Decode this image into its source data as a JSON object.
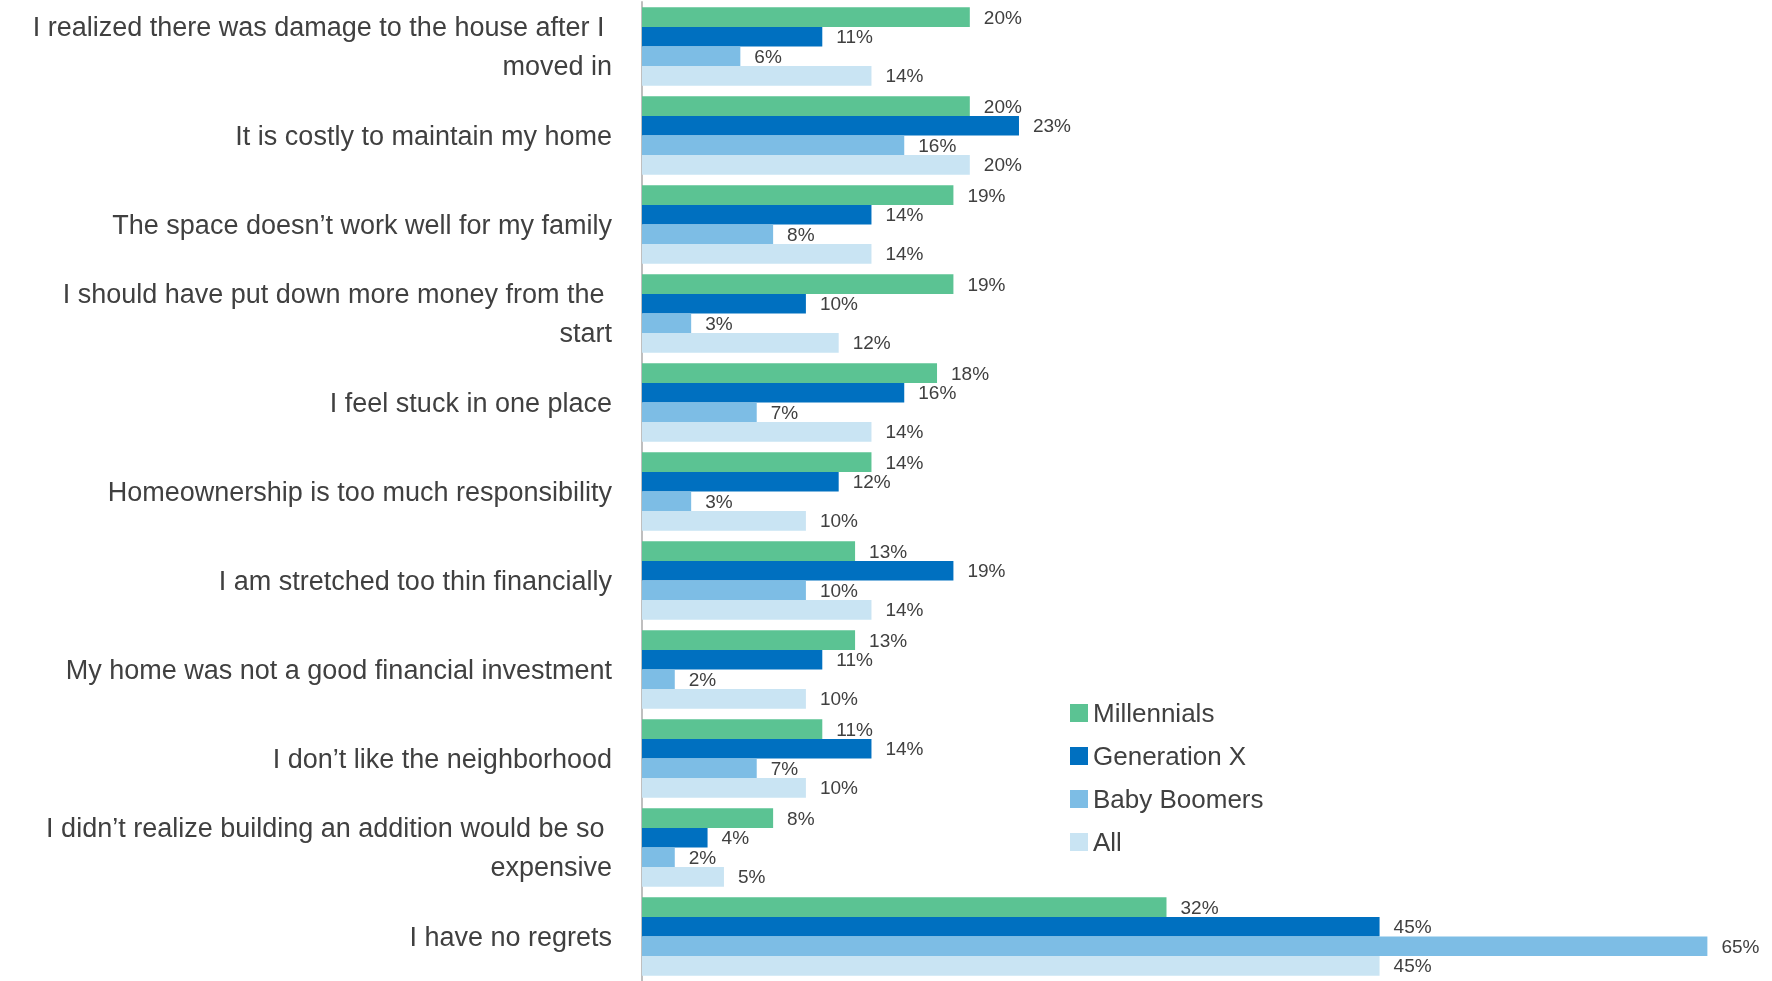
{
  "chart_data": {
    "type": "bar",
    "orientation": "horizontal",
    "categories": [
      "I realized there was damage to the house after I moved in",
      "It is costly to maintain my home",
      "The space doesn’t work well for my family",
      "I should have put down more money from the start",
      "I feel stuck in one place",
      "Homeownership is too much responsibility",
      "I am stretched too thin financially",
      "My home was not a good financial investment",
      "I don’t like the neighborhood",
      "I didn’t realize building an addition would be so expensive",
      "I have no regrets"
    ],
    "series": [
      {
        "name": "Millennials",
        "color": "#5bc393",
        "values": [
          20,
          20,
          19,
          19,
          18,
          14,
          13,
          13,
          11,
          8,
          32
        ],
        "value_labels": [
          "20%",
          "20%",
          "19%",
          "19%",
          "18%",
          "14%",
          "13%",
          "13%",
          "11%",
          "8%",
          "32%"
        ]
      },
      {
        "name": "Generation X",
        "color": "#0070c0",
        "values": [
          11,
          23,
          14,
          10,
          16,
          12,
          19,
          11,
          14,
          4,
          45
        ],
        "value_labels": [
          "11%",
          "23%",
          "14%",
          "10%",
          "16%",
          "12%",
          "19%",
          "11%",
          "14%",
          "4%",
          "45%"
        ]
      },
      {
        "name": "Baby Boomers",
        "color": "#7dbde5",
        "values": [
          6,
          16,
          8,
          3,
          7,
          3,
          10,
          2,
          7,
          2,
          65
        ],
        "value_labels": [
          "6%",
          "16%",
          "8%",
          "3%",
          "7%",
          "3%",
          "10%",
          "2%",
          "7%",
          "2%",
          "65%"
        ]
      },
      {
        "name": "All",
        "color": "#c9e4f3",
        "values": [
          14,
          20,
          14,
          12,
          14,
          10,
          14,
          10,
          10,
          5,
          45
        ],
        "value_labels": [
          "14%",
          "20%",
          "14%",
          "12%",
          "14%",
          "10%",
          "14%",
          "10%",
          "10%",
          "5%",
          "45%"
        ]
      }
    ],
    "legend": "bottom right",
    "grid": false
  }
}
